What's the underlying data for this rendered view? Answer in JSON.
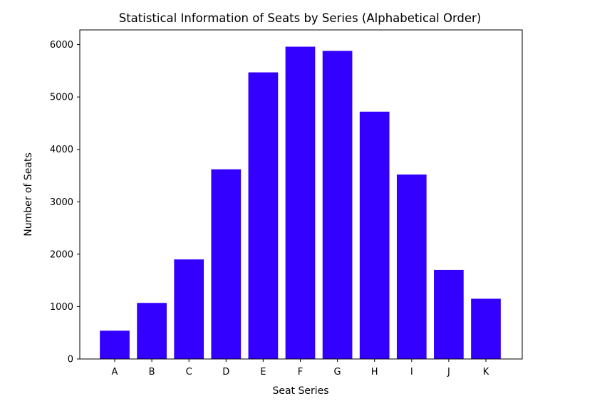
{
  "chart_data": {
    "type": "bar",
    "title": "Statistical Information of Seats by Series (Alphabetical Order)",
    "xlabel": "Seat Series",
    "ylabel": "Number of Seats",
    "categories": [
      "A",
      "B",
      "C",
      "D",
      "E",
      "F",
      "G",
      "H",
      "I",
      "J",
      "K"
    ],
    "values": [
      540,
      1070,
      1900,
      3620,
      5470,
      5960,
      5880,
      4720,
      3520,
      1700,
      1150
    ],
    "ylim": [
      0,
      6280
    ],
    "yticks": [
      0,
      1000,
      2000,
      3000,
      4000,
      5000,
      6000
    ],
    "grid": false,
    "bar_color": "#3300ff"
  }
}
